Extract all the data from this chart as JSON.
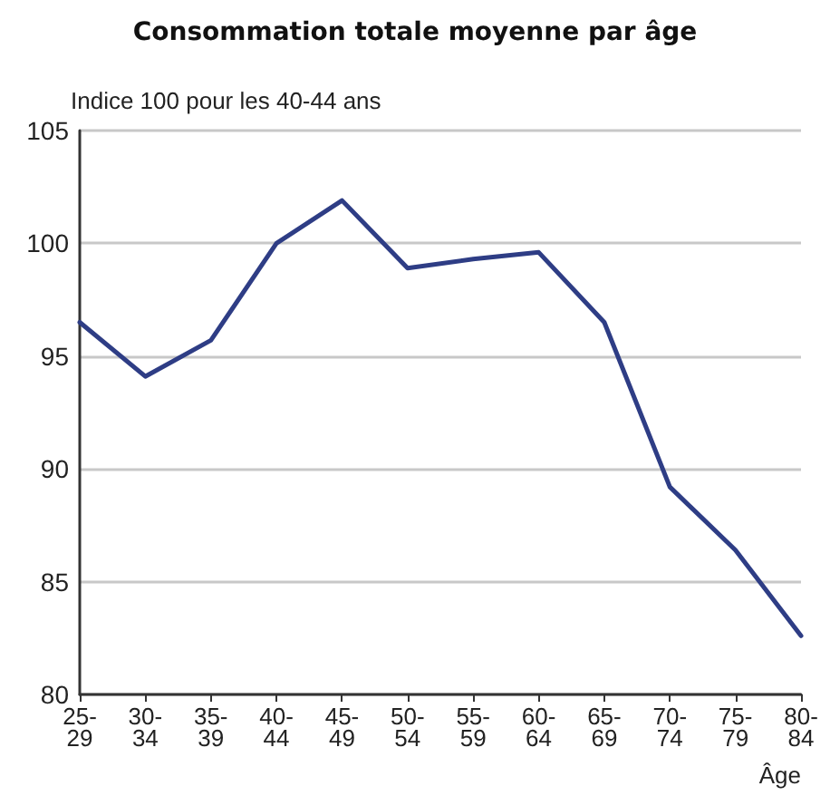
{
  "chart_data": {
    "type": "line",
    "title": "Consommation totale moyenne par âge",
    "subtitle": "Indice 100 pour les 40-44 ans",
    "xlabel": "Âge",
    "categories": [
      "25-29",
      "30-34",
      "35-39",
      "40-44",
      "45-49",
      "50-54",
      "55-59",
      "60-64",
      "65-69",
      "70-74",
      "75-79",
      "80-84"
    ],
    "series": [
      {
        "color": "#2e3d85",
        "values": [
          96.5,
          94.1,
          95.7,
          100,
          101.9,
          98.9,
          99.3,
          99.6,
          96.5,
          89.2,
          86.4,
          82.6
        ]
      }
    ],
    "ylim": [
      80,
      105
    ],
    "yticks": [
      80,
      85,
      90,
      95,
      100,
      105
    ],
    "grid": "y",
    "marker": "none",
    "line_style": "solid"
  }
}
